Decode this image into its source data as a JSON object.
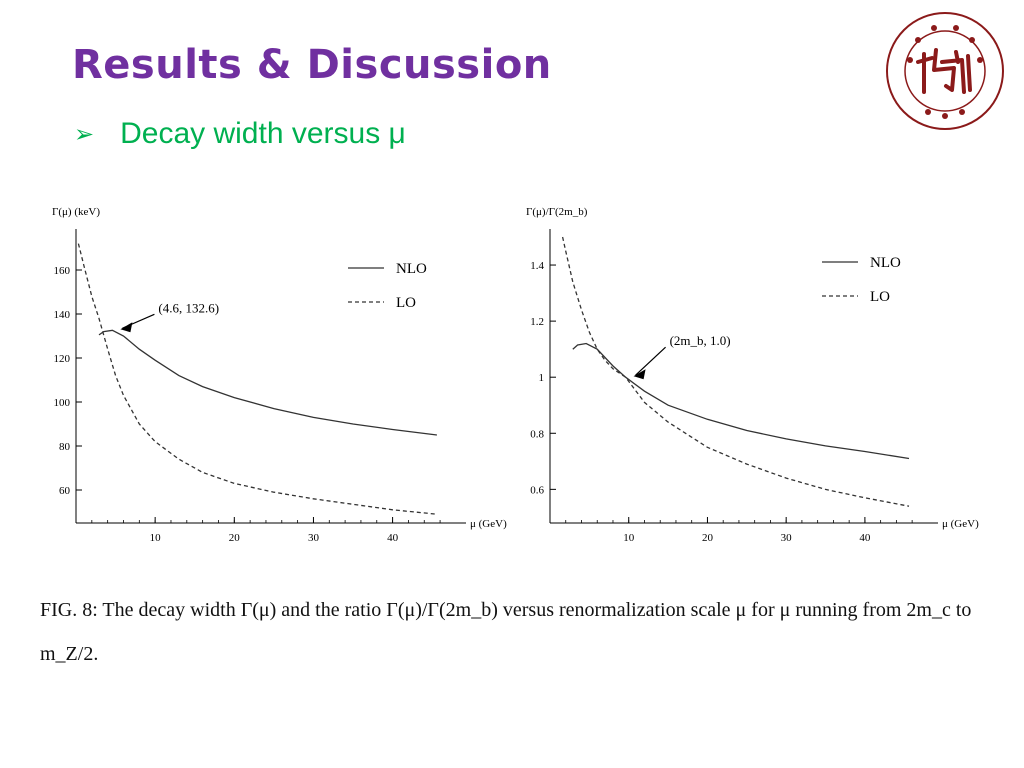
{
  "slide": {
    "title": "Results & Discussion",
    "bullet": "Decay width versus μ",
    "caption": "FIG. 8: The decay width Γ(μ) and the ratio Γ(μ)/Γ(2m_b) versus renormalization scale μ for μ running from 2m_c to m_Z/2.",
    "title_color": "#7030A0",
    "bullet_color": "#00B050",
    "logo_color": "#8B1A1A"
  },
  "chart_data": [
    {
      "type": "line",
      "title": "",
      "ylabel": "Γ(μ) (keV)",
      "xlabel": "μ (GeV)",
      "xlim": [
        0,
        47
      ],
      "ylim": [
        45,
        175
      ],
      "xticks": [
        10,
        20,
        30,
        40
      ],
      "yticks": [
        60,
        80,
        100,
        120,
        140,
        160
      ],
      "legend": "top-right",
      "annotation": {
        "text": "(4.6, 132.6)",
        "x": 4.6,
        "y": 132.6
      },
      "series": [
        {
          "name": "NLO",
          "style": "solid",
          "x": [
            2.9,
            3.5,
            4.6,
            6,
            8,
            10,
            13,
            16,
            20,
            25,
            30,
            35,
            40,
            45.6
          ],
          "y": [
            130.5,
            132,
            132.6,
            130,
            124,
            119,
            112,
            107,
            102,
            97,
            93,
            90,
            87.5,
            85
          ]
        },
        {
          "name": "LO",
          "style": "dashed",
          "x": [
            0.3,
            1,
            2,
            2.9,
            4,
            5,
            6,
            8,
            10,
            13,
            16,
            20,
            25,
            30,
            35,
            40,
            45.6
          ],
          "y": [
            172,
            162,
            148,
            138,
            124,
            112,
            103,
            90,
            82,
            74,
            68,
            63,
            59,
            56,
            53.5,
            51,
            49
          ]
        }
      ]
    },
    {
      "type": "line",
      "title": "",
      "ylabel": "Γ(μ)/Γ(2m_b)",
      "xlabel": "μ (GeV)",
      "xlim": [
        0,
        47
      ],
      "ylim": [
        0.48,
        1.5
      ],
      "xticks": [
        10,
        20,
        30,
        40
      ],
      "yticks": [
        0.6,
        0.8,
        1.0,
        1.2,
        1.4
      ],
      "legend": "top-right",
      "annotation": {
        "text": "(2m_b, 1.0)",
        "x": 9.6,
        "y": 1.0
      },
      "series": [
        {
          "name": "NLO",
          "style": "solid",
          "x": [
            2.9,
            3.5,
            4.6,
            6,
            8,
            9.6,
            12,
            15,
            20,
            25,
            30,
            35,
            40,
            45.6
          ],
          "y": [
            1.1,
            1.115,
            1.12,
            1.1,
            1.04,
            1.0,
            0.95,
            0.9,
            0.85,
            0.81,
            0.78,
            0.755,
            0.735,
            0.71
          ]
        },
        {
          "name": "LO",
          "style": "dashed",
          "x": [
            1.6,
            2,
            2.9,
            4,
            5,
            6,
            7,
            8,
            9.6,
            12,
            15,
            20,
            25,
            30,
            35,
            40,
            45.6
          ],
          "y": [
            1.5,
            1.45,
            1.34,
            1.24,
            1.16,
            1.1,
            1.06,
            1.03,
            1.0,
            0.91,
            0.84,
            0.75,
            0.69,
            0.64,
            0.6,
            0.57,
            0.54
          ]
        }
      ]
    }
  ]
}
